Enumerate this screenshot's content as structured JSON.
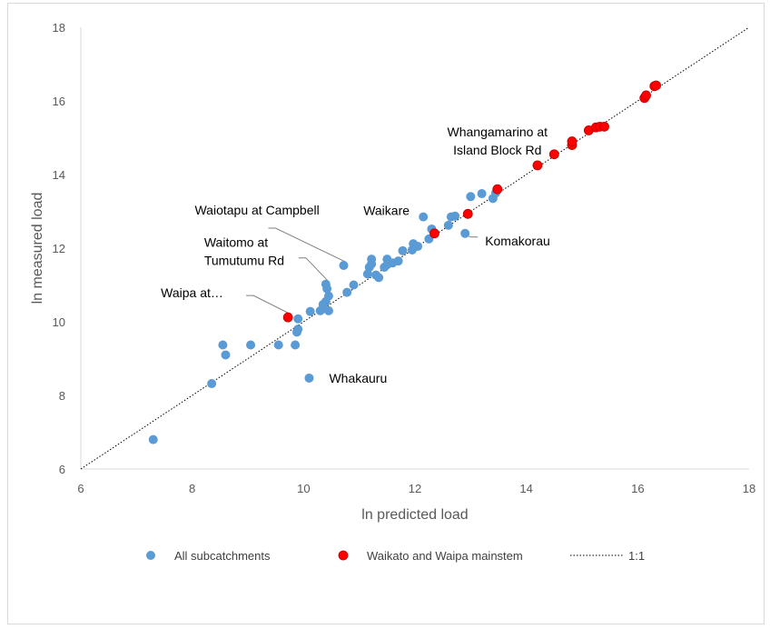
{
  "chart_data": {
    "type": "scatter",
    "title": "",
    "xlabel": "ln predicted load",
    "ylabel": "ln measured load",
    "xlim": [
      6,
      18
    ],
    "ylim": [
      6,
      18
    ],
    "x_ticks": [
      6,
      8,
      10,
      12,
      14,
      16,
      18
    ],
    "y_ticks": [
      6,
      8,
      10,
      12,
      14,
      16,
      18
    ],
    "grid": false,
    "legend_position": "bottom",
    "series": [
      {
        "name": "All subcatchments",
        "color": "#5b9bd5",
        "points": [
          [
            7.3,
            6.8
          ],
          [
            8.35,
            8.32
          ],
          [
            8.55,
            9.37
          ],
          [
            8.6,
            9.1
          ],
          [
            9.05,
            9.37
          ],
          [
            9.55,
            9.37
          ],
          [
            9.85,
            9.37
          ],
          [
            9.88,
            9.72
          ],
          [
            9.9,
            9.8
          ],
          [
            9.9,
            10.08
          ],
          [
            10.1,
            8.47
          ],
          [
            10.12,
            10.28
          ],
          [
            10.3,
            10.3
          ],
          [
            10.35,
            10.47
          ],
          [
            10.4,
            10.55
          ],
          [
            10.45,
            10.3
          ],
          [
            10.4,
            11.02
          ],
          [
            10.42,
            10.9
          ],
          [
            10.45,
            10.7
          ],
          [
            10.72,
            11.53
          ],
          [
            10.78,
            10.8
          ],
          [
            10.9,
            11.0
          ],
          [
            11.15,
            11.3
          ],
          [
            11.18,
            11.48
          ],
          [
            11.22,
            11.57
          ],
          [
            11.22,
            11.7
          ],
          [
            11.3,
            11.27
          ],
          [
            11.35,
            11.2
          ],
          [
            11.45,
            11.48
          ],
          [
            11.5,
            11.55
          ],
          [
            11.5,
            11.7
          ],
          [
            11.6,
            11.6
          ],
          [
            11.7,
            11.65
          ],
          [
            11.78,
            11.93
          ],
          [
            11.95,
            11.95
          ],
          [
            11.97,
            12.12
          ],
          [
            12.05,
            12.05
          ],
          [
            12.15,
            12.85
          ],
          [
            12.25,
            12.25
          ],
          [
            12.3,
            12.52
          ],
          [
            12.6,
            12.62
          ],
          [
            12.65,
            12.85
          ],
          [
            12.72,
            12.87
          ],
          [
            12.9,
            12.4
          ],
          [
            13.0,
            13.4
          ],
          [
            13.2,
            13.48
          ],
          [
            13.4,
            13.35
          ],
          [
            13.45,
            13.5
          ]
        ]
      },
      {
        "name": "Waikato and Waipa mainstem",
        "color": "#ff0000",
        "points": [
          [
            9.72,
            10.12
          ],
          [
            12.35,
            12.4
          ],
          [
            12.95,
            12.93
          ],
          [
            13.48,
            13.6
          ],
          [
            14.2,
            14.25
          ],
          [
            14.5,
            14.55
          ],
          [
            14.82,
            14.8
          ],
          [
            14.82,
            14.9
          ],
          [
            15.12,
            15.2
          ],
          [
            15.25,
            15.28
          ],
          [
            15.32,
            15.3
          ],
          [
            15.4,
            15.3
          ],
          [
            16.12,
            16.08
          ],
          [
            16.15,
            16.15
          ],
          [
            16.3,
            16.4
          ],
          [
            16.33,
            16.42
          ]
        ]
      }
    ],
    "reference_line": {
      "name": "1:1",
      "from": [
        6,
        6
      ],
      "to": [
        18,
        18
      ],
      "style": "dotted"
    },
    "annotations": [
      {
        "lines": [
          "Whangamarino at",
          "Island Block Rd"
        ],
        "point": [
          13.48,
          13.6
        ],
        "leader": false
      },
      {
        "lines": [
          "Waikare"
        ],
        "point": [
          12.15,
          12.85
        ],
        "leader": false
      },
      {
        "lines": [
          "Komakorau"
        ],
        "point": [
          12.9,
          12.4
        ],
        "leader": true
      },
      {
        "lines": [
          "Waiotapu at Campbell"
        ],
        "point": [
          10.72,
          11.53
        ],
        "leader": true
      },
      {
        "lines": [
          "Waitomo at",
          "Tumutumu Rd"
        ],
        "point": [
          10.4,
          11.02
        ],
        "leader": true
      },
      {
        "lines": [
          "Waipa at…"
        ],
        "point": [
          9.72,
          10.12
        ],
        "leader": true
      },
      {
        "lines": [
          "Whakauru"
        ],
        "point": [
          10.1,
          8.47
        ],
        "leader": false
      }
    ]
  }
}
